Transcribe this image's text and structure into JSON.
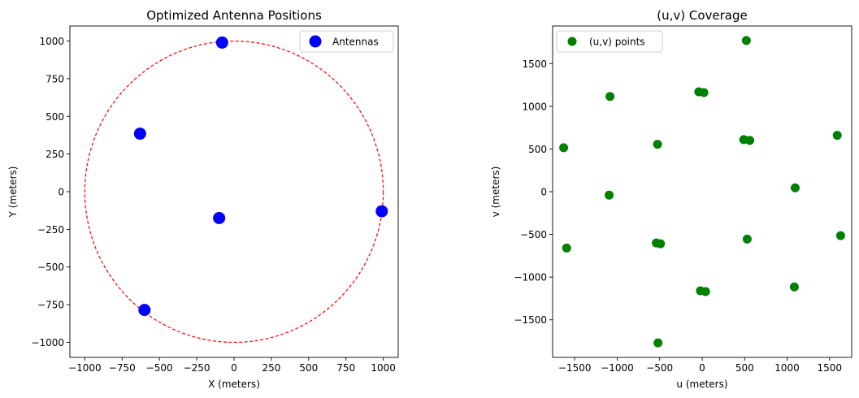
{
  "chart_data": [
    {
      "type": "scatter",
      "title": "Optimized Antenna Positions",
      "xlabel": "X (meters)",
      "ylabel": "Y (meters)",
      "xlim": [
        -1100,
        1100
      ],
      "ylim": [
        -1100,
        1100
      ],
      "xticks": [
        -1000,
        -750,
        -500,
        -250,
        0,
        250,
        500,
        750,
        1000
      ],
      "yticks": [
        -1000,
        -750,
        -500,
        -250,
        0,
        250,
        500,
        750,
        1000
      ],
      "legend_position": "top-right",
      "series": [
        {
          "name": "Antennas",
          "color": "#0000ff",
          "points": [
            {
              "x": -80,
              "y": 990
            },
            {
              "x": -630,
              "y": 385
            },
            {
              "x": -100,
              "y": -175
            },
            {
              "x": 990,
              "y": -130
            },
            {
              "x": -600,
              "y": -785
            }
          ]
        }
      ],
      "reference_circle": {
        "radius": 1000,
        "color": "#ff0000",
        "style": "dashed"
      }
    },
    {
      "type": "scatter",
      "title": "(u,v) Coverage",
      "xlabel": "u (meters)",
      "ylabel": "v (meters)",
      "xlim": [
        -1760,
        1760
      ],
      "ylim": [
        -1940,
        1940
      ],
      "xticks": [
        -1500,
        -1000,
        -500,
        0,
        500,
        1000,
        1500
      ],
      "yticks": [
        -1500,
        -1000,
        -500,
        0,
        500,
        1000,
        1500
      ],
      "legend_position": "top-left",
      "series": [
        {
          "name": "(u,v) points",
          "color": "#008000",
          "points": [
            {
              "x": 520,
              "y": 1770
            },
            {
              "x": -1085,
              "y": 1115
            },
            {
              "x": -40,
              "y": 1170
            },
            {
              "x": 20,
              "y": 1160
            },
            {
              "x": -1630,
              "y": 515
            },
            {
              "x": -525,
              "y": 555
            },
            {
              "x": 490,
              "y": 610
            },
            {
              "x": 560,
              "y": 600
            },
            {
              "x": 1590,
              "y": 660
            },
            {
              "x": -1095,
              "y": -40
            },
            {
              "x": 1095,
              "y": 45
            },
            {
              "x": -1595,
              "y": -660
            },
            {
              "x": -540,
              "y": -600
            },
            {
              "x": -490,
              "y": -610
            },
            {
              "x": 530,
              "y": -555
            },
            {
              "x": 1630,
              "y": -515
            },
            {
              "x": -20,
              "y": -1160
            },
            {
              "x": 40,
              "y": -1170
            },
            {
              "x": 1085,
              "y": -1115
            },
            {
              "x": -520,
              "y": -1770
            }
          ]
        }
      ]
    }
  ]
}
